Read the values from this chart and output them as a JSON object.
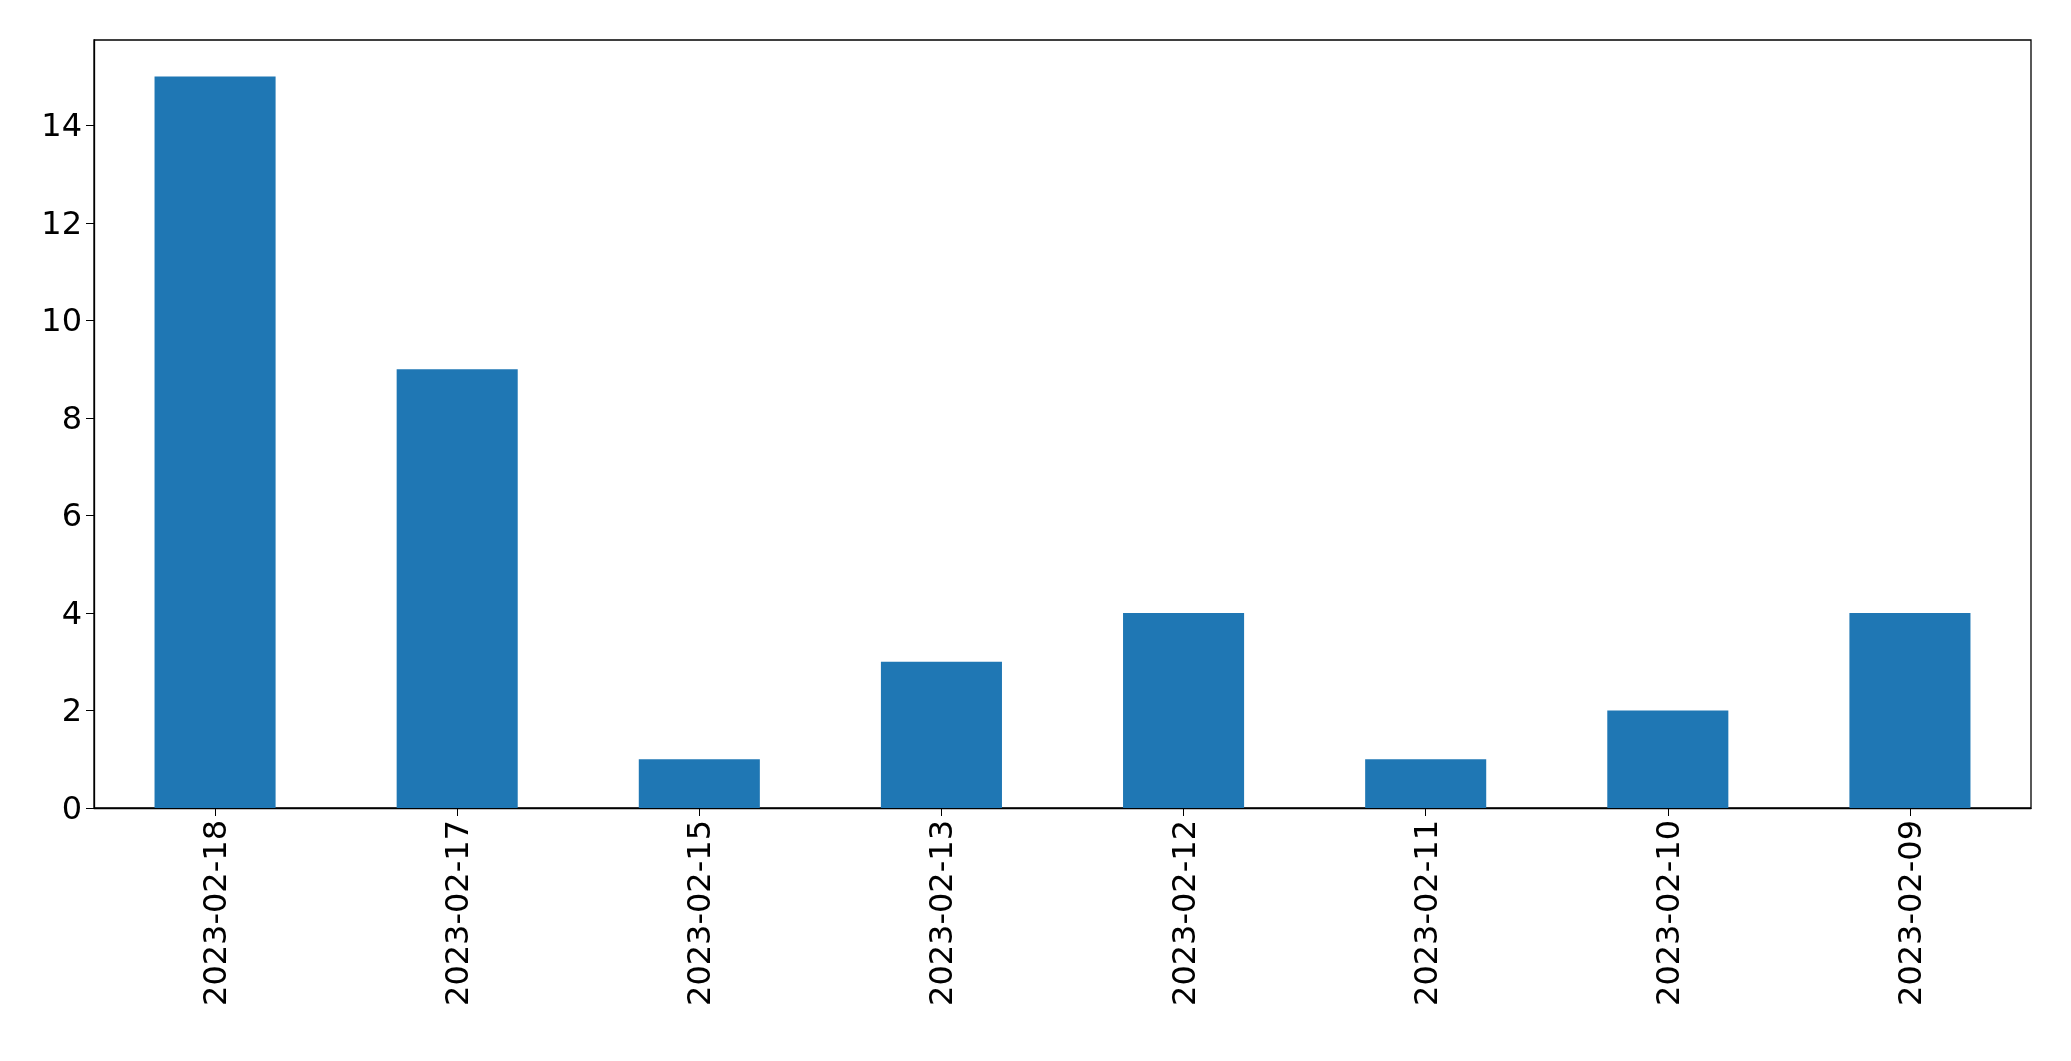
{
  "chart_data": {
    "type": "bar",
    "categories": [
      "2023-02-18",
      "2023-02-17",
      "2023-02-15",
      "2023-02-13",
      "2023-02-12",
      "2023-02-11",
      "2023-02-10",
      "2023-02-09"
    ],
    "values": [
      15,
      9,
      1,
      3,
      4,
      1,
      2,
      4
    ],
    "color": "#1f77b4",
    "ylim": [
      0,
      15.75
    ],
    "yticks": [
      0,
      2,
      4,
      6,
      8,
      10,
      12,
      14
    ],
    "grid": false
  }
}
